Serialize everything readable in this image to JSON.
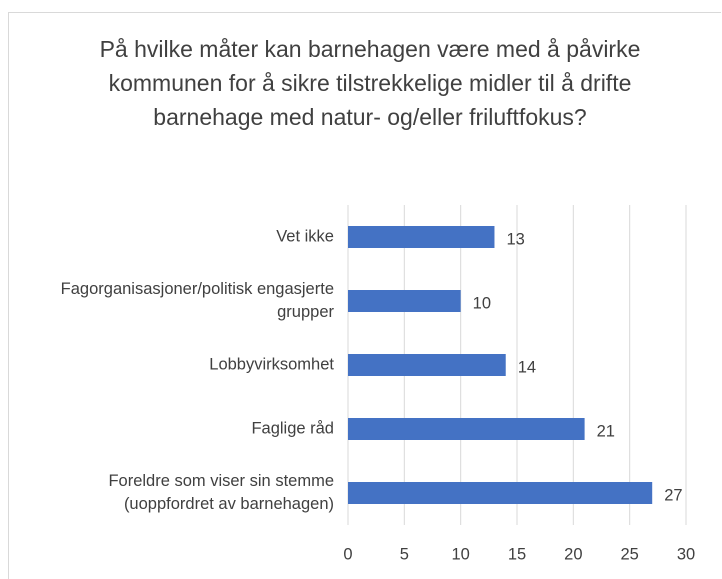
{
  "chart_data": {
    "type": "bar",
    "orientation": "horizontal",
    "title": "På hvilke måter kan barnehagen være med å påvirke kommunen for å sikre tilstrekkelige midler til å drifte barnehage med natur- og/eller friluftfokus?",
    "categories": [
      "Vet ikke",
      "Fagorganisasjoner/politisk engasjerte grupper",
      "Lobbyvirksomhet",
      "Faglige råd",
      "Foreldre som viser sin stemme (uoppfordret av barnehagen)"
    ],
    "values": [
      13,
      10,
      14,
      21,
      27
    ],
    "color": "#4472c4",
    "xlim": [
      0,
      30
    ],
    "xticks": [
      0,
      5,
      10,
      15,
      20,
      25,
      30
    ],
    "grid": true
  }
}
